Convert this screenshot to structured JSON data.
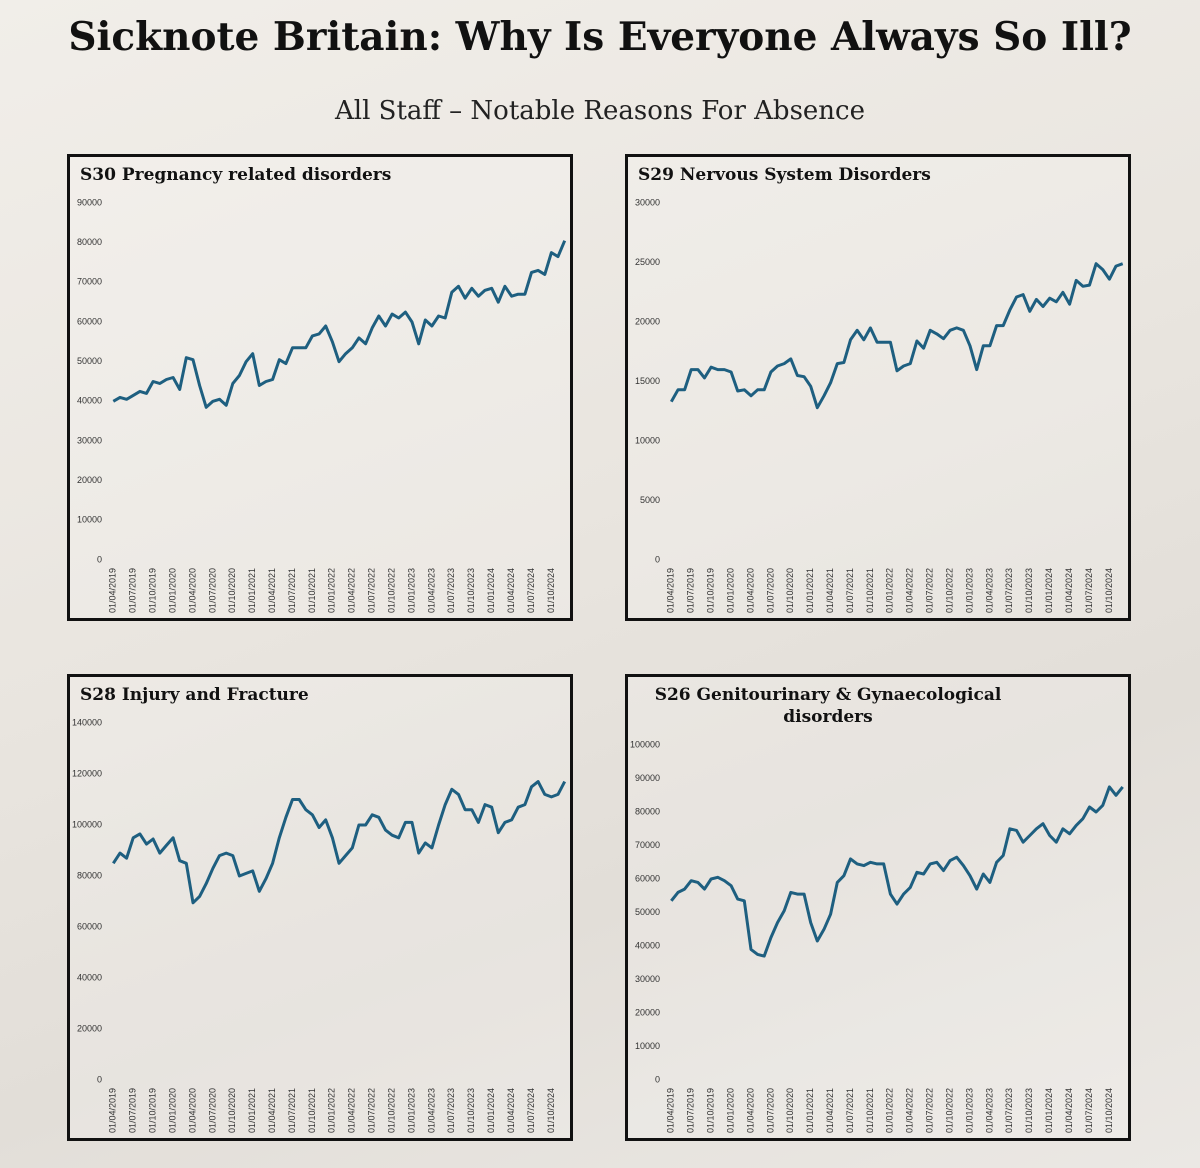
{
  "title": "Sicknote Britain: Why Is Everyone Always So Ill?",
  "subtitle": "All Staff – Notable Reasons For Absence",
  "chart_data": [
    {
      "type": "line",
      "title": "S30 Pregnancy related disorders",
      "color": "#1e5f80",
      "categories": [
        "01/04/2019",
        null,
        null,
        "01/07/2019",
        null,
        null,
        "01/10/2019",
        null,
        null,
        "01/01/2020",
        null,
        null,
        "01/04/2020",
        null,
        null,
        "01/07/2020",
        null,
        null,
        "01/10/2020",
        null,
        null,
        "01/01/2021",
        null,
        null,
        "01/04/2021",
        null,
        null,
        "01/07/2021",
        null,
        null,
        "01/10/2021",
        null,
        null,
        "01/01/2022",
        null,
        null,
        "01/04/2022",
        null,
        null,
        "01/07/2022",
        null,
        null,
        "01/10/2022",
        null,
        null,
        "01/01/2023",
        null,
        null,
        "01/04/2023",
        null,
        null,
        "01/07/2023",
        null,
        null,
        "01/10/2023",
        null,
        null,
        "01/01/2024",
        null,
        null,
        "01/04/2024",
        null,
        null,
        "01/07/2024",
        null,
        null,
        "01/10/2024",
        null,
        null
      ],
      "values": [
        40000,
        41000,
        40500,
        41500,
        42500,
        42000,
        45000,
        44500,
        45500,
        46000,
        43000,
        51000,
        50500,
        44000,
        38500,
        40000,
        40500,
        39000,
        44500,
        46500,
        50000,
        52000,
        44000,
        45000,
        45500,
        50500,
        49500,
        53500,
        53500,
        53500,
        56500,
        57000,
        59000,
        55000,
        50000,
        52000,
        53500,
        56000,
        54500,
        58500,
        61500,
        59000,
        62000,
        61000,
        62500,
        60000,
        54500,
        60500,
        59000,
        61500,
        61000,
        67500,
        69000,
        66000,
        68500,
        66500,
        68000,
        68500,
        65000,
        69000,
        66500,
        67000,
        67000,
        72500,
        73000,
        72000,
        77500,
        76500,
        80500
      ],
      "ylim": [
        0,
        90000
      ],
      "yticks": [
        0,
        10000,
        20000,
        30000,
        40000,
        50000,
        60000,
        70000,
        80000,
        90000
      ]
    },
    {
      "type": "line",
      "title": "S29 Nervous System Disorders",
      "color": "#1e5f80",
      "categories": [
        "01/04/2019",
        null,
        null,
        "01/07/2019",
        null,
        null,
        "01/10/2019",
        null,
        null,
        "01/01/2020",
        null,
        null,
        "01/04/2020",
        null,
        null,
        "01/07/2020",
        null,
        null,
        "01/10/2020",
        null,
        null,
        "01/01/2021",
        null,
        null,
        "01/04/2021",
        null,
        null,
        "01/07/2021",
        null,
        null,
        "01/10/2021",
        null,
        null,
        "01/01/2022",
        null,
        null,
        "01/04/2022",
        null,
        null,
        "01/07/2022",
        null,
        null,
        "01/10/2022",
        null,
        null,
        "01/01/2023",
        null,
        null,
        "01/04/2023",
        null,
        null,
        "01/07/2023",
        null,
        null,
        "01/10/2023",
        null,
        null,
        "01/01/2024",
        null,
        null,
        "01/04/2024",
        null,
        null,
        "01/07/2024",
        null,
        null,
        "01/10/2024",
        null,
        null
      ],
      "values": [
        13300,
        14300,
        14300,
        16000,
        16000,
        15300,
        16200,
        16000,
        16000,
        15800,
        14200,
        14300,
        13800,
        14300,
        14300,
        15800,
        16300,
        16500,
        16900,
        15500,
        15400,
        14600,
        12800,
        13800,
        14900,
        16500,
        16600,
        18500,
        19300,
        18500,
        19500,
        18300,
        18300,
        18300,
        15900,
        16300,
        16500,
        18400,
        17800,
        19300,
        19000,
        18600,
        19300,
        19500,
        19300,
        18000,
        16000,
        18000,
        18000,
        19700,
        19700,
        21000,
        22100,
        22300,
        20900,
        21900,
        21300,
        22000,
        21700,
        22500,
        21500,
        23500,
        23000,
        23100,
        24900,
        24400,
        23600,
        24700,
        24900
      ],
      "ylim": [
        0,
        30000
      ],
      "yticks": [
        0,
        5000,
        10000,
        15000,
        20000,
        25000,
        30000
      ]
    },
    {
      "type": "line",
      "title": "S28 Injury and Fracture",
      "color": "#1e5f80",
      "categories": [
        "01/04/2019",
        null,
        null,
        "01/07/2019",
        null,
        null,
        "01/10/2019",
        null,
        null,
        "01/01/2020",
        null,
        null,
        "01/04/2020",
        null,
        null,
        "01/07/2020",
        null,
        null,
        "01/10/2020",
        null,
        null,
        "01/01/2021",
        null,
        null,
        "01/04/2021",
        null,
        null,
        "01/07/2021",
        null,
        null,
        "01/10/2021",
        null,
        null,
        "01/01/2022",
        null,
        null,
        "01/04/2022",
        null,
        null,
        "01/07/2022",
        null,
        null,
        "01/10/2022",
        null,
        null,
        "01/01/2023",
        null,
        null,
        "01/04/2023",
        null,
        null,
        "01/07/2023",
        null,
        null,
        "01/10/2023",
        null,
        null,
        "01/01/2024",
        null,
        null,
        "01/04/2024",
        null,
        null,
        "01/07/2024",
        null,
        null,
        "01/10/2024",
        null,
        null
      ],
      "values": [
        85000,
        89000,
        87000,
        95000,
        96500,
        92500,
        94500,
        89000,
        92000,
        95000,
        86000,
        85000,
        69500,
        72000,
        77000,
        83000,
        88000,
        89000,
        88000,
        80000,
        81000,
        82000,
        74000,
        79000,
        85000,
        95000,
        103000,
        110000,
        110000,
        106000,
        104000,
        99000,
        102000,
        95000,
        85000,
        88000,
        91000,
        100000,
        100000,
        104000,
        103000,
        98000,
        96000,
        95000,
        101000,
        101000,
        89000,
        93000,
        91000,
        100000,
        108000,
        114000,
        112000,
        106000,
        106000,
        101000,
        108000,
        107000,
        97000,
        101000,
        102000,
        107000,
        108000,
        115000,
        117000,
        112000,
        111000,
        112000,
        117000
      ],
      "ylim": [
        0,
        140000
      ],
      "yticks": [
        0,
        20000,
        40000,
        60000,
        80000,
        100000,
        120000,
        140000
      ]
    },
    {
      "type": "line",
      "title": "S26 Genitourinary & Gynaecological disorders",
      "color": "#1e5f80",
      "categories": [
        "01/04/2019",
        null,
        null,
        "01/07/2019",
        null,
        null,
        "01/10/2019",
        null,
        null,
        "01/01/2020",
        null,
        null,
        "01/04/2020",
        null,
        null,
        "01/07/2020",
        null,
        null,
        "01/10/2020",
        null,
        null,
        "01/01/2021",
        null,
        null,
        "01/04/2021",
        null,
        null,
        "01/07/2021",
        null,
        null,
        "01/10/2021",
        null,
        null,
        "01/01/2022",
        null,
        null,
        "01/04/2022",
        null,
        null,
        "01/07/2022",
        null,
        null,
        "01/10/2022",
        null,
        null,
        "01/01/2023",
        null,
        null,
        "01/04/2023",
        null,
        null,
        "01/07/2023",
        null,
        null,
        "01/10/2023",
        null,
        null,
        "01/01/2024",
        null,
        null,
        "01/04/2024",
        null,
        null,
        "01/07/2024",
        null,
        null,
        "01/10/2024",
        null,
        null
      ],
      "values": [
        53500,
        56000,
        57000,
        59500,
        59000,
        57000,
        60000,
        60500,
        59500,
        58000,
        54000,
        53500,
        39000,
        37500,
        37000,
        42500,
        47000,
        50500,
        56000,
        55500,
        55500,
        47000,
        41500,
        45000,
        49500,
        59000,
        61000,
        66000,
        64500,
        64000,
        65000,
        64500,
        64500,
        55500,
        52500,
        55500,
        57500,
        62000,
        61500,
        64500,
        65000,
        62500,
        65500,
        66500,
        64000,
        61000,
        57000,
        61500,
        59000,
        65000,
        67000,
        75000,
        74500,
        71000,
        73000,
        75000,
        76500,
        73000,
        71000,
        75000,
        73500,
        76000,
        78000,
        81500,
        80000,
        82000,
        87500,
        85000,
        87500
      ],
      "ylim": [
        0,
        100000
      ],
      "yticks": [
        0,
        10000,
        20000,
        30000,
        40000,
        50000,
        60000,
        70000,
        80000,
        90000,
        100000
      ]
    }
  ]
}
